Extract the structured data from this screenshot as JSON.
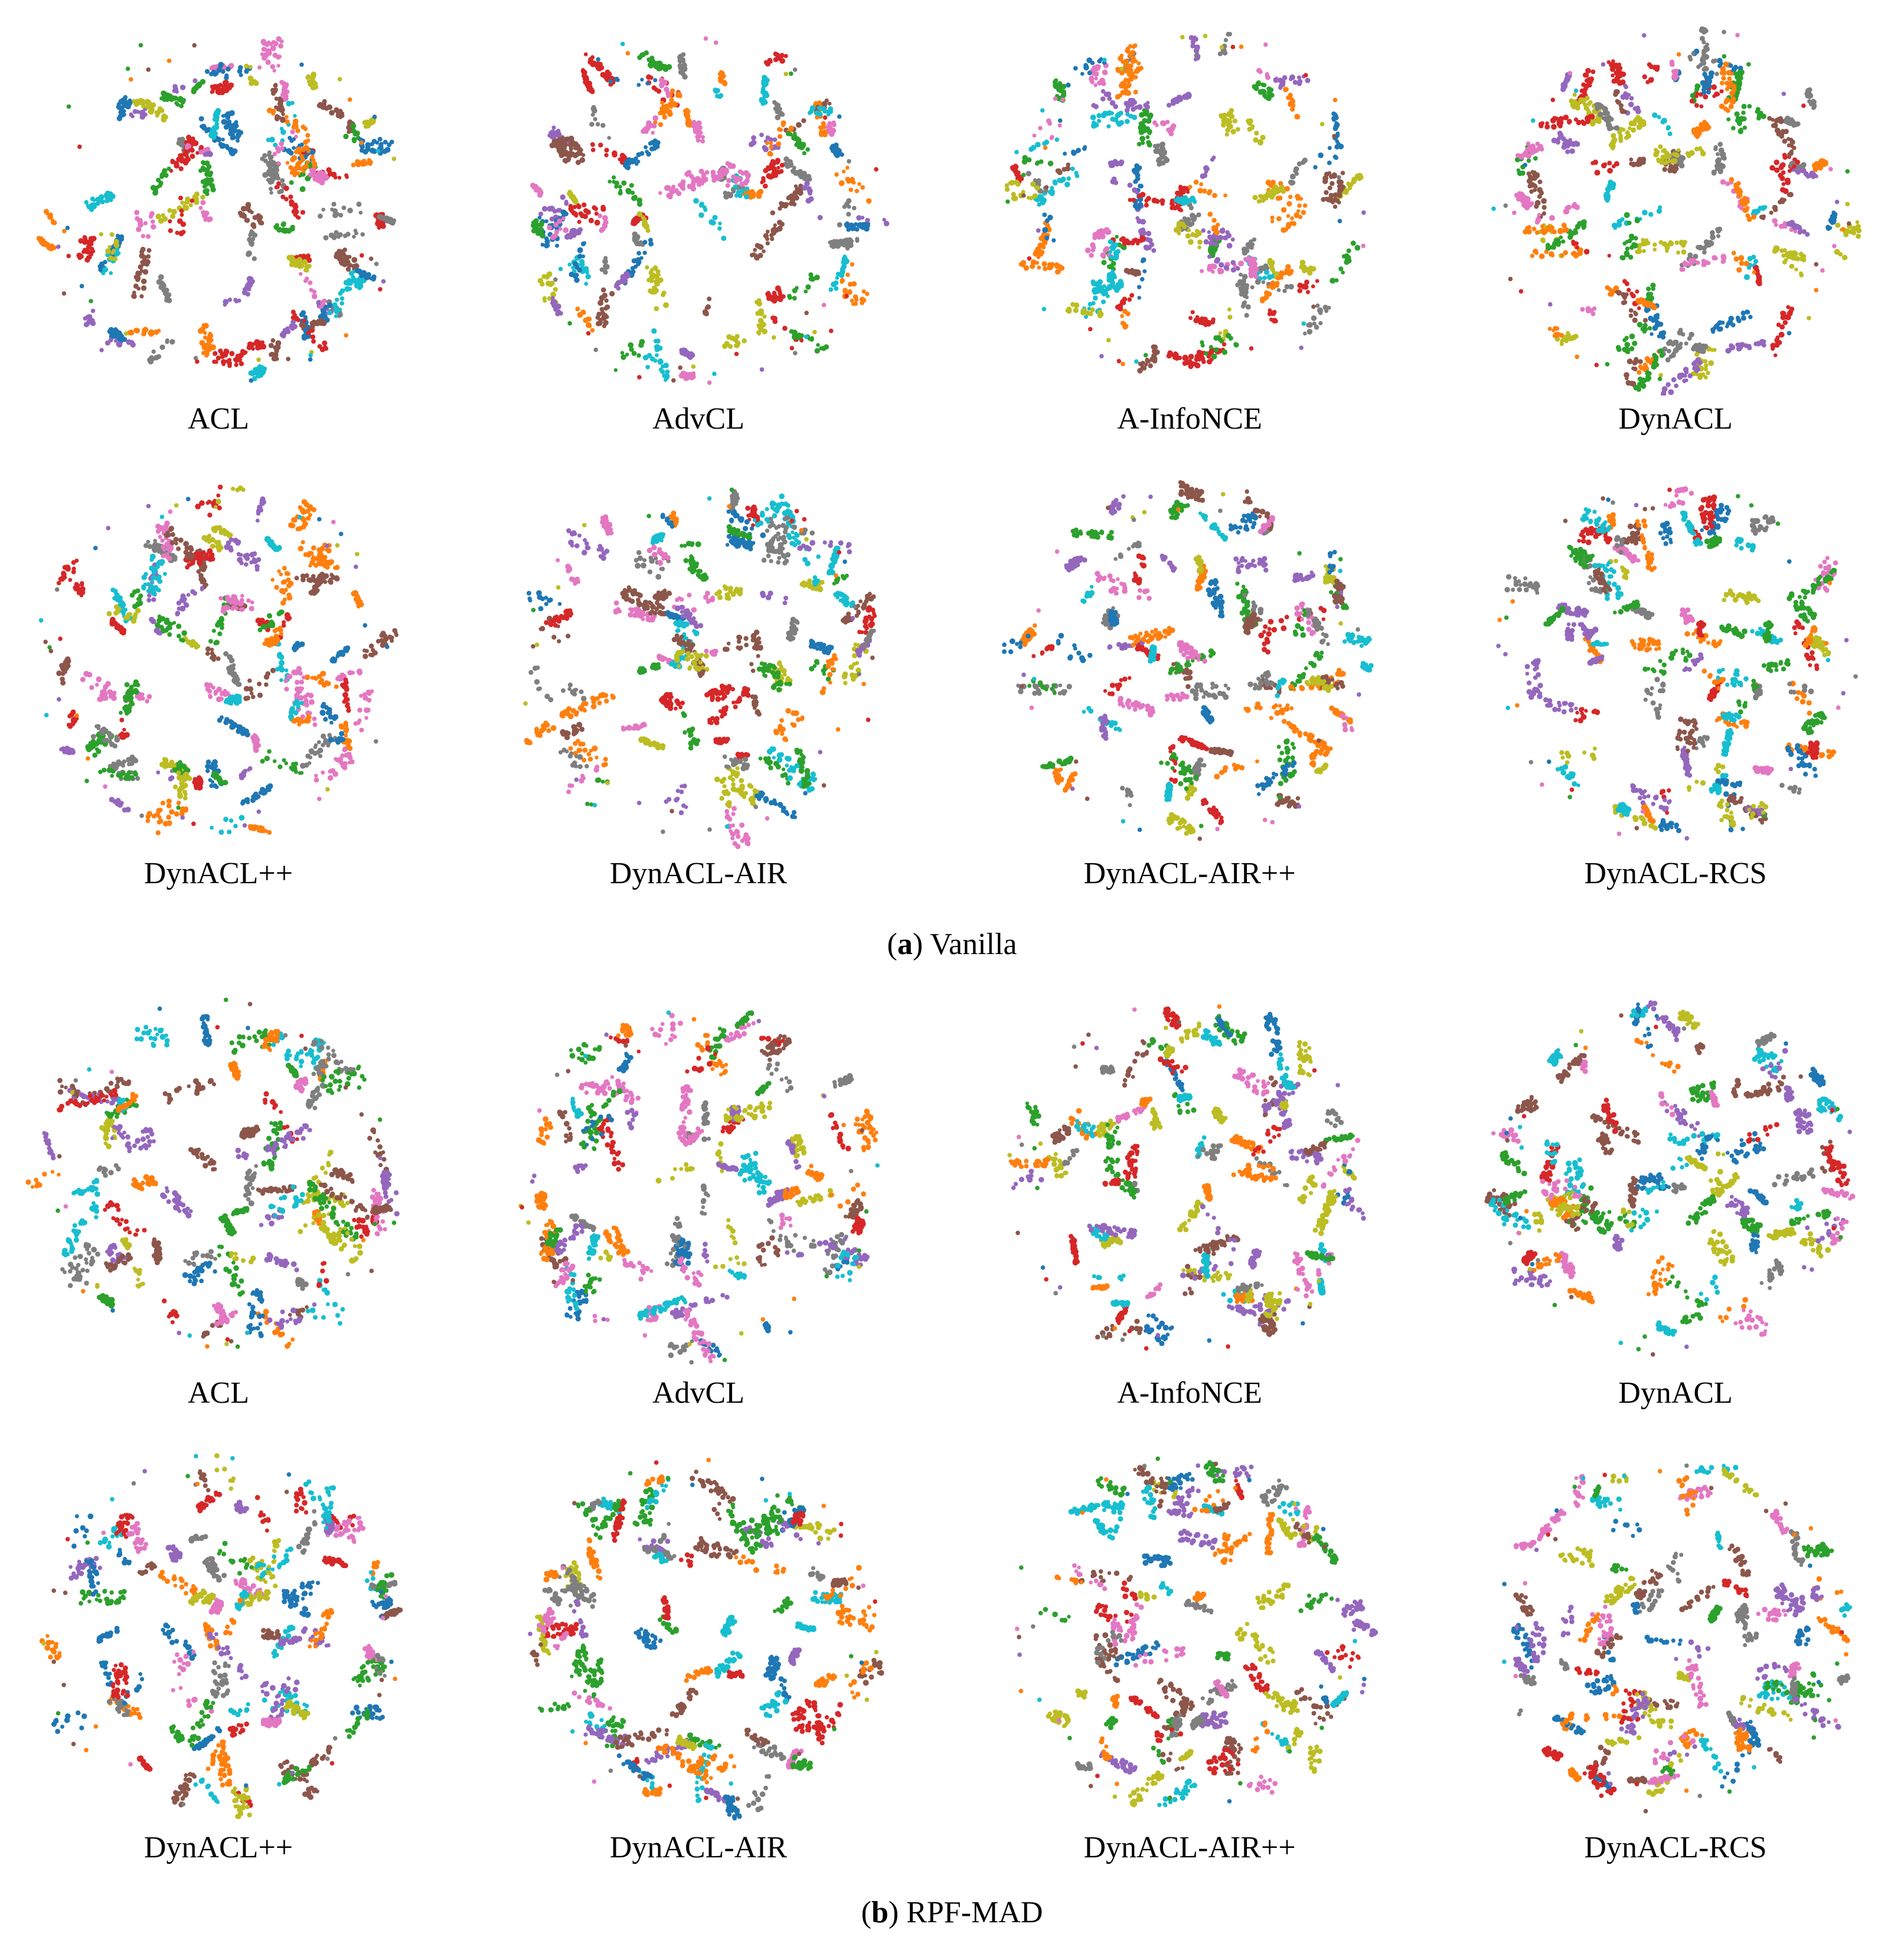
{
  "figure": {
    "panels": [
      {
        "letter": "a",
        "name": "Vanilla",
        "methods": [
          "ACL",
          "AdvCL",
          "A-InfoNCE",
          "DynACL",
          "DynACL++",
          "DynACL-AIR",
          "DynACL-AIR++",
          "DynACL-RCS"
        ]
      },
      {
        "letter": "b",
        "name": "RPF-MAD",
        "methods": [
          "ACL",
          "AdvCL",
          "A-InfoNCE",
          "DynACL",
          "DynACL++",
          "DynACL-AIR",
          "DynACL-AIR++",
          "DynACL-RCS"
        ]
      }
    ]
  },
  "chart_data": {
    "type": "scatter",
    "description_of_marks": "t-SNE embeddings, points colored by class (10 classes)",
    "class_colors": [
      "#1f77b4",
      "#ff7f0e",
      "#2ca02c",
      "#d62728",
      "#9467bd",
      "#8c564b",
      "#e377c2",
      "#7f7f7f",
      "#bcbd22",
      "#17becf"
    ],
    "axes_visible": false,
    "grid": false,
    "legend": "none",
    "subplots": [
      {
        "panel": "a",
        "title": "ACL",
        "seed": 11
      },
      {
        "panel": "a",
        "title": "AdvCL",
        "seed": 23
      },
      {
        "panel": "a",
        "title": "A-InfoNCE",
        "seed": 37
      },
      {
        "panel": "a",
        "title": "DynACL",
        "seed": 41
      },
      {
        "panel": "a",
        "title": "DynACL++",
        "seed": 53
      },
      {
        "panel": "a",
        "title": "DynACL-AIR",
        "seed": 67
      },
      {
        "panel": "a",
        "title": "DynACL-AIR++",
        "seed": 79
      },
      {
        "panel": "a",
        "title": "DynACL-RCS",
        "seed": 83
      },
      {
        "panel": "b",
        "title": "ACL",
        "seed": 97
      },
      {
        "panel": "b",
        "title": "AdvCL",
        "seed": 101
      },
      {
        "panel": "b",
        "title": "A-InfoNCE",
        "seed": 113
      },
      {
        "panel": "b",
        "title": "DynACL",
        "seed": 127
      },
      {
        "panel": "b",
        "title": "DynACL++",
        "seed": 131
      },
      {
        "panel": "b",
        "title": "DynACL-AIR",
        "seed": 149
      },
      {
        "panel": "b",
        "title": "DynACL-AIR++",
        "seed": 157
      },
      {
        "panel": "b",
        "title": "DynACL-RCS",
        "seed": 163
      }
    ]
  }
}
